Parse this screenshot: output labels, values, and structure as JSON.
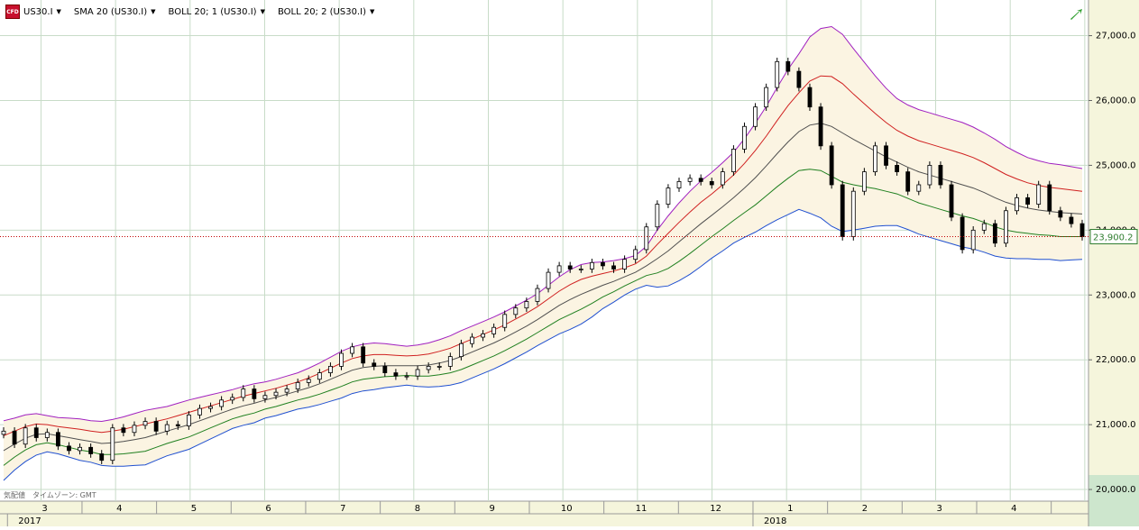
{
  "toolbar": {
    "symbol": "US30.I",
    "indicators": [
      "SMA 20 (US30.I)",
      "BOLL 20; 1 (US30.I)",
      "BOLL 20; 2 (US30.I)"
    ]
  },
  "footer": {
    "timezone": "気配値　タイムゾーン: GMT"
  },
  "colors": {
    "grid": "#c8dcc8",
    "upper2": "#a020c0",
    "upper1": "#d02020",
    "mid": "#505050",
    "lower1": "#208020",
    "lower2": "#2050d0",
    "band_fill": "#fbf4e2",
    "price_line": "#c00000",
    "price_label": "#2f7d2f",
    "axis_bg": "#f5f5dc"
  },
  "chart_data": {
    "type": "candlestick",
    "title": "",
    "xlabel": "",
    "ylabel": "",
    "ylim": [
      19820,
      27550
    ],
    "yticks": [
      20000,
      21000,
      22000,
      23000,
      24000,
      25000,
      26000,
      27000
    ],
    "ytick_labels": [
      "20,000.0",
      "21,000.0",
      "22,000.0",
      "23,000.0",
      "24,000.0",
      "25,000.0",
      "26,000.0",
      "27,000.0"
    ],
    "months": [
      "3",
      "4",
      "5",
      "6",
      "7",
      "8",
      "9",
      "10",
      "11",
      "12",
      "1",
      "2",
      "3",
      "4"
    ],
    "years": [
      {
        "label": "2017",
        "start_month_index": 0
      },
      {
        "label": "2018",
        "start_month_index": 10
      }
    ],
    "current_price": 23900.2,
    "current_price_label": "23,900.2",
    "series": [
      {
        "name": "US30.I",
        "values": [
          20900,
          20700,
          20950,
          20800,
          20880,
          20670,
          20600,
          20650,
          20550,
          20450,
          20950,
          20880,
          20990,
          21050,
          20900,
          21000,
          20980,
          21150,
          21250,
          21280,
          21380,
          21420,
          21550,
          21400,
          21450,
          21500,
          21550,
          21650,
          21700,
          21800,
          21900,
          22100,
          22200,
          21950,
          21900,
          21800,
          21750,
          21750,
          21850,
          21900,
          21900,
          22050,
          22250,
          22350,
          22400,
          22500,
          22700,
          22800,
          22900,
          23100,
          23350,
          23450,
          23400,
          23400,
          23500,
          23450,
          23400,
          23550,
          23700,
          24050,
          24400,
          24650,
          24750,
          24800,
          24750,
          24700,
          24900,
          25250,
          25600,
          25900,
          26200,
          26600,
          26450,
          26200,
          25900,
          25300,
          24700,
          23900,
          24600,
          24900,
          25300,
          25000,
          24900,
          24600,
          24700,
          25000,
          24700,
          24200,
          23700,
          24000,
          24100,
          23800,
          24300,
          24500,
          24400,
          24700,
          24300,
          24200,
          24100,
          23900.2
        ]
      },
      {
        "name": "SMA 20 (US30.I)",
        "values": [
          20600,
          20700,
          20790,
          20850,
          20860,
          20830,
          20800,
          20770,
          20740,
          20710,
          20720,
          20740,
          20770,
          20800,
          20850,
          20900,
          20950,
          21000,
          21060,
          21120,
          21180,
          21240,
          21290,
          21330,
          21380,
          21420,
          21470,
          21520,
          21570,
          21630,
          21700,
          21770,
          21840,
          21880,
          21900,
          21910,
          21910,
          21910,
          21910,
          21920,
          21950,
          21990,
          22050,
          22120,
          22190,
          22260,
          22340,
          22430,
          22520,
          22620,
          22730,
          22840,
          22930,
          23010,
          23080,
          23150,
          23210,
          23280,
          23350,
          23450,
          23560,
          23680,
          23820,
          23960,
          24100,
          24230,
          24360,
          24500,
          24650,
          24810,
          24990,
          25180,
          25360,
          25520,
          25620,
          25650,
          25600,
          25500,
          25400,
          25310,
          25220,
          25130,
          25050,
          24970,
          24900,
          24850,
          24800,
          24750,
          24700,
          24650,
          24580,
          24500,
          24430,
          24380,
          24340,
          24310,
          24290,
          24270,
          24260,
          24250
        ]
      },
      {
        "name": "BOLL 20; 1 (US30.I) upper",
        "values": [
          20830,
          20900,
          20970,
          21010,
          21000,
          20970,
          20950,
          20930,
          20900,
          20880,
          20900,
          20930,
          20970,
          21010,
          21050,
          21090,
          21140,
          21190,
          21240,
          21290,
          21340,
          21390,
          21440,
          21480,
          21520,
          21560,
          21610,
          21660,
          21720,
          21790,
          21870,
          21950,
          22020,
          22060,
          22080,
          22080,
          22070,
          22060,
          22070,
          22090,
          22130,
          22180,
          22250,
          22320,
          22390,
          22460,
          22540,
          22630,
          22720,
          22820,
          22940,
          23060,
          23160,
          23240,
          23290,
          23330,
          23370,
          23420,
          23480,
          23600,
          23780,
          23950,
          24120,
          24280,
          24430,
          24560,
          24700,
          24850,
          25030,
          25230,
          25450,
          25690,
          25920,
          26120,
          26300,
          26380,
          26370,
          26260,
          26100,
          25950,
          25800,
          25660,
          25540,
          25450,
          25380,
          25330,
          25280,
          25230,
          25180,
          25120,
          25040,
          24950,
          24860,
          24790,
          24730,
          24690,
          24660,
          24640,
          24620,
          24600
        ]
      },
      {
        "name": "BOLL 20; 1 (US30.I) lower",
        "values": [
          20370,
          20500,
          20610,
          20690,
          20720,
          20690,
          20650,
          20610,
          20580,
          20540,
          20540,
          20550,
          20570,
          20590,
          20650,
          20710,
          20760,
          20810,
          20880,
          20950,
          21020,
          21090,
          21140,
          21180,
          21240,
          21280,
          21330,
          21380,
          21420,
          21470,
          21530,
          21590,
          21660,
          21700,
          21720,
          21740,
          21750,
          21760,
          21750,
          21750,
          21770,
          21800,
          21850,
          21920,
          21990,
          22060,
          22140,
          22230,
          22320,
          22420,
          22520,
          22620,
          22700,
          22780,
          22870,
          22970,
          23050,
          23140,
          23220,
          23300,
          23340,
          23410,
          23520,
          23640,
          23770,
          23900,
          24020,
          24150,
          24270,
          24390,
          24530,
          24670,
          24800,
          24920,
          24940,
          24920,
          24830,
          24740,
          24700,
          24670,
          24640,
          24600,
          24560,
          24490,
          24420,
          24370,
          24320,
          24270,
          24220,
          24180,
          24120,
          24050,
          24000,
          23970,
          23950,
          23930,
          23920,
          23900,
          23900,
          23900
        ]
      },
      {
        "name": "BOLL 20; 2 (US30.I) upper",
        "values": [
          21060,
          21100,
          21150,
          21170,
          21140,
          21110,
          21100,
          21090,
          21060,
          21050,
          21080,
          21120,
          21170,
          21220,
          21250,
          21280,
          21330,
          21380,
          21420,
          21460,
          21500,
          21540,
          21590,
          21630,
          21660,
          21700,
          21750,
          21800,
          21870,
          21950,
          22040,
          22130,
          22200,
          22240,
          22260,
          22250,
          22230,
          22210,
          22230,
          22260,
          22310,
          22370,
          22450,
          22520,
          22590,
          22660,
          22740,
          22830,
          22920,
          23020,
          23150,
          23280,
          23390,
          23470,
          23500,
          23510,
          23530,
          23560,
          23610,
          23750,
          24000,
          24220,
          24420,
          24600,
          24760,
          24890,
          25040,
          25200,
          25410,
          25650,
          25910,
          26200,
          26480,
          26720,
          26980,
          27110,
          27140,
          27020,
          26800,
          26590,
          26380,
          26190,
          26030,
          25930,
          25860,
          25810,
          25760,
          25710,
          25660,
          25590,
          25500,
          25400,
          25290,
          25200,
          25120,
          25070,
          25030,
          25010,
          24980,
          24950
        ]
      },
      {
        "name": "BOLL 20; 2 (US30.I) lower",
        "values": [
          20140,
          20300,
          20430,
          20530,
          20580,
          20550,
          20500,
          20450,
          20420,
          20370,
          20360,
          20360,
          20370,
          20380,
          20450,
          20520,
          20570,
          20620,
          20700,
          20780,
          20860,
          20940,
          20990,
          21030,
          21100,
          21140,
          21190,
          21240,
          21270,
          21310,
          21360,
          21410,
          21480,
          21520,
          21540,
          21570,
          21590,
          21610,
          21590,
          21580,
          21590,
          21610,
          21650,
          21720,
          21790,
          21860,
          21940,
          22030,
          22120,
          22220,
          22310,
          22400,
          22470,
          22550,
          22660,
          22790,
          22890,
          23000,
          23090,
          23150,
          23120,
          23140,
          23220,
          23320,
          23440,
          23570,
          23680,
          23800,
          23890,
          23970,
          24070,
          24160,
          24240,
          24320,
          24260,
          24190,
          24060,
          23980,
          24000,
          24030,
          24060,
          24070,
          24070,
          24010,
          23940,
          23890,
          23840,
          23790,
          23740,
          23710,
          23660,
          23600,
          23570,
          23560,
          23560,
          23550,
          23550,
          23530,
          23540,
          23550
        ]
      }
    ]
  }
}
